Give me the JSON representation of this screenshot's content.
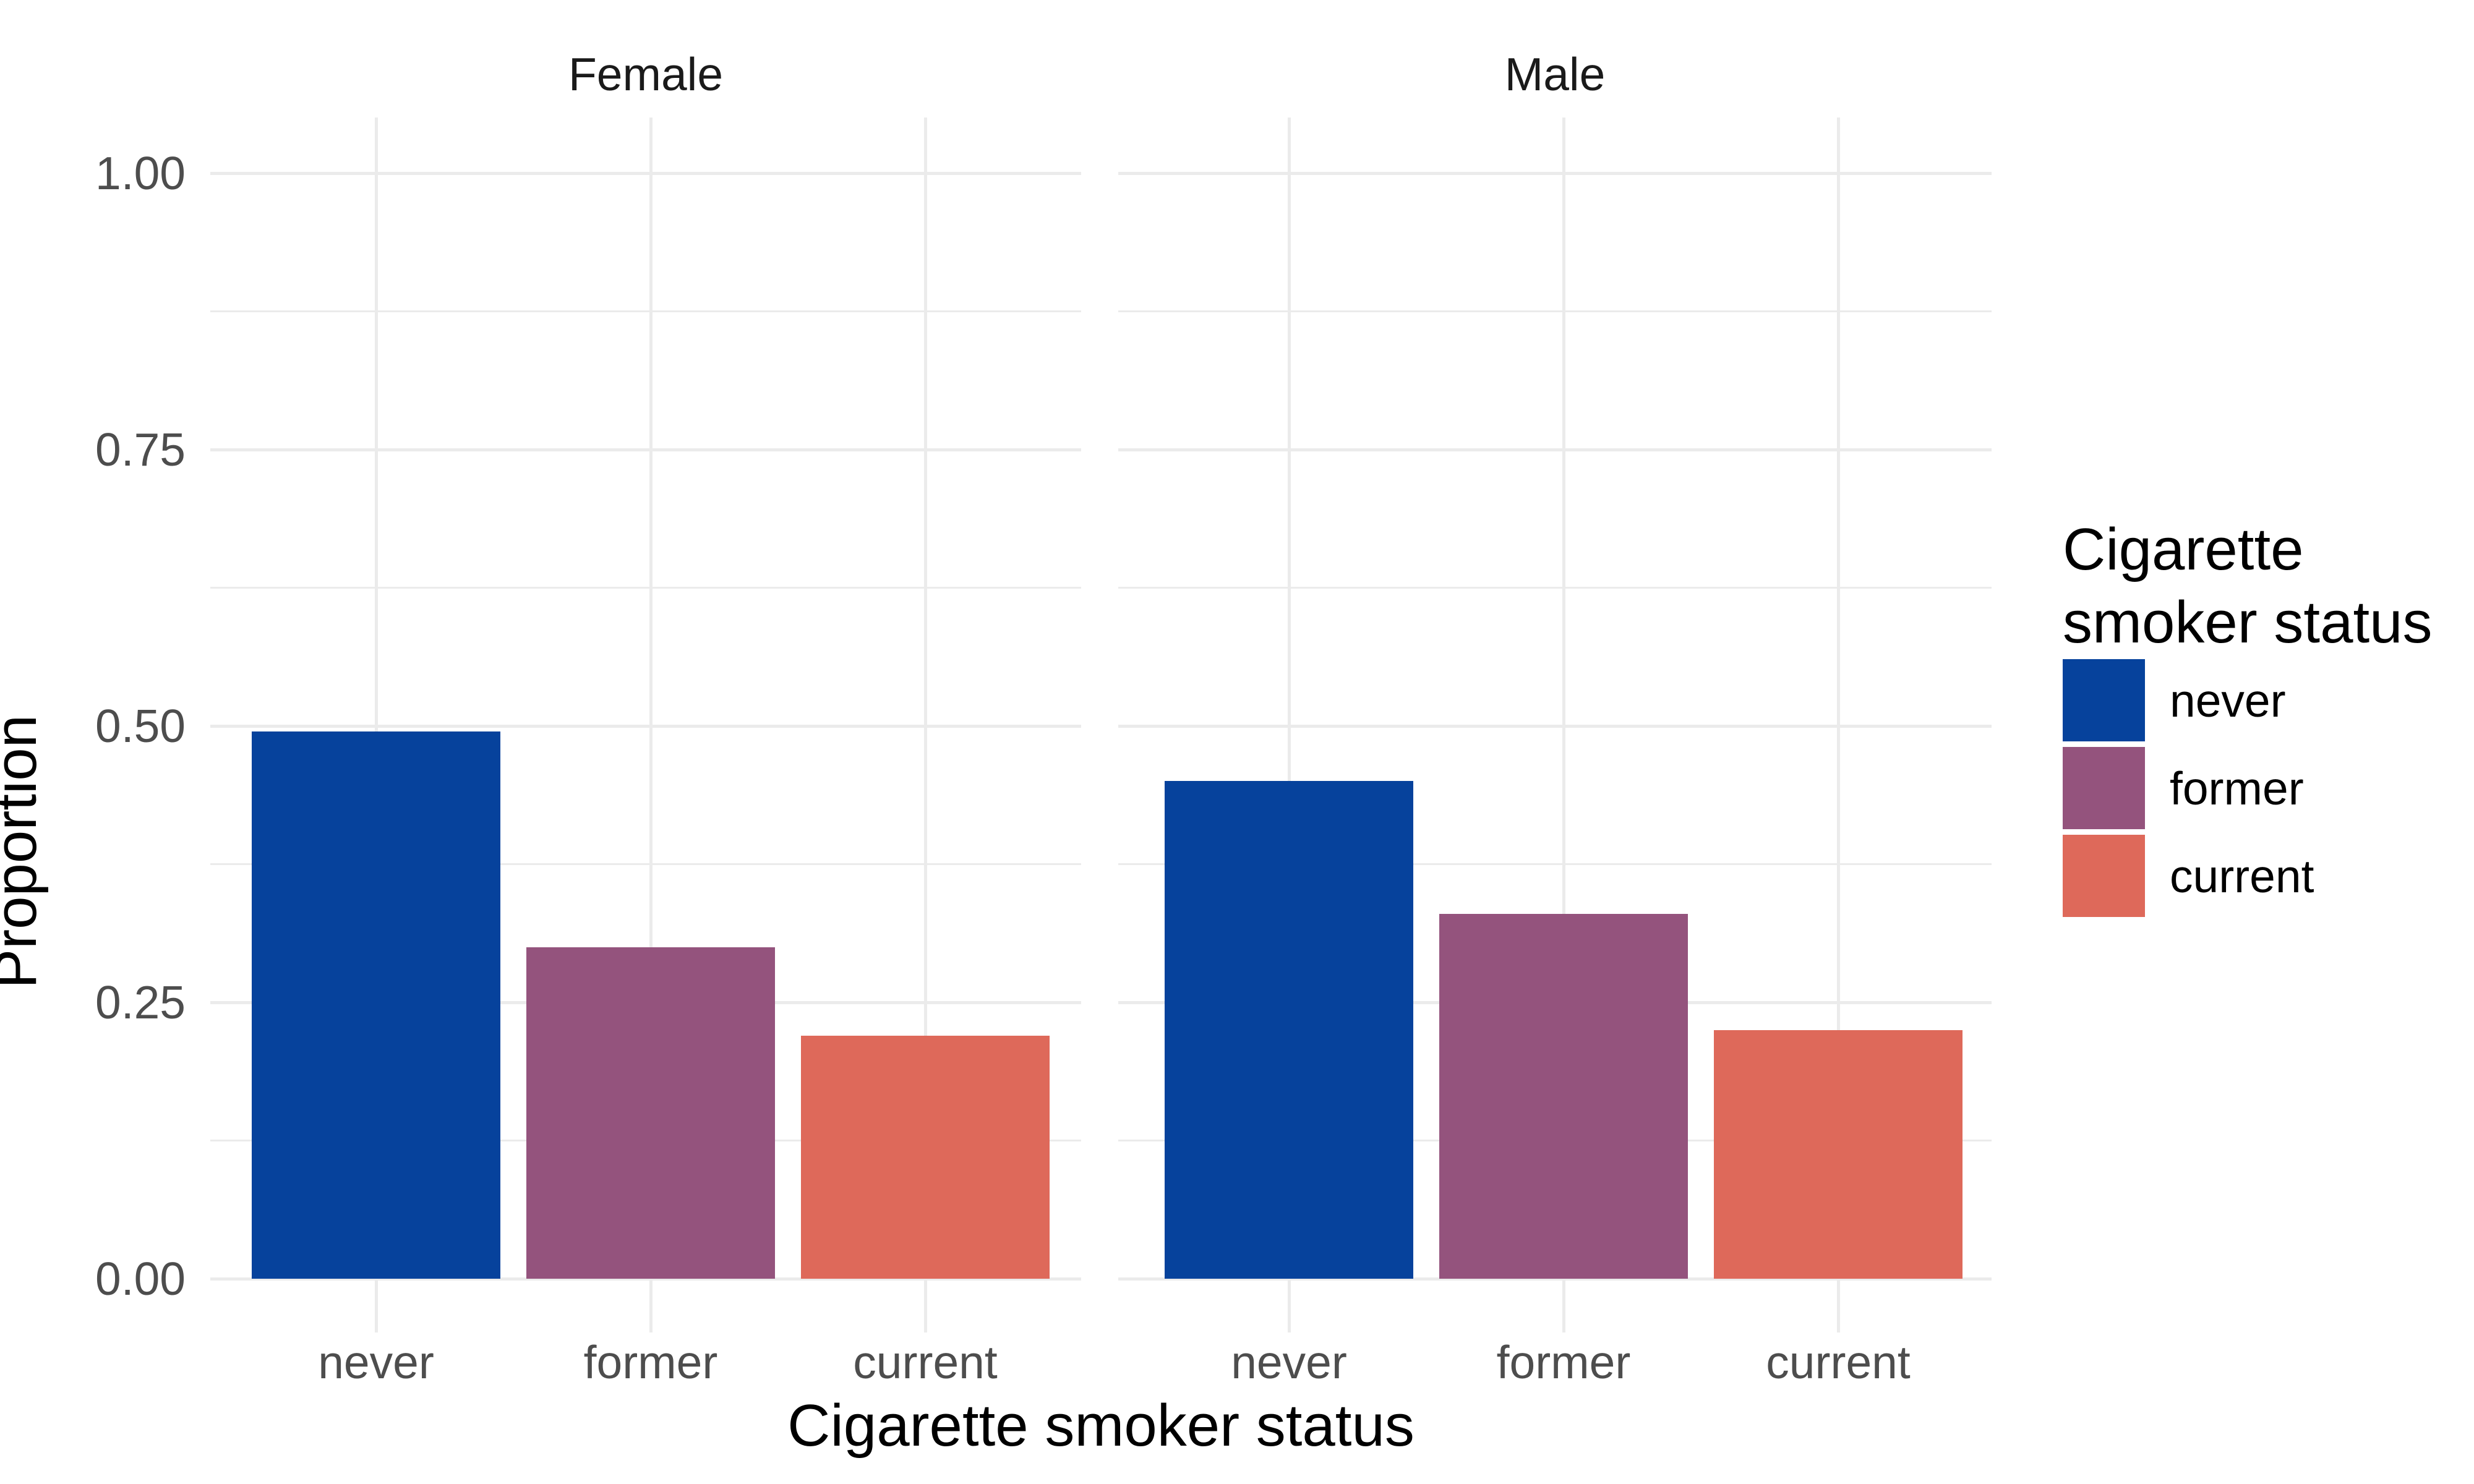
{
  "chart_data": {
    "type": "bar",
    "title": "",
    "xlabel": "Cigarette smoker status",
    "ylabel": "Proportion",
    "y_ticks": [
      "1.00",
      "0.75",
      "0.50",
      "0.25",
      "0.00"
    ],
    "y_tick_values": [
      1.0,
      0.75,
      0.5,
      0.25,
      0.0
    ],
    "ylim": [
      0,
      1
    ],
    "grid": {
      "major": true,
      "minor": true,
      "background": "#FFFFFF",
      "line_color": "#EBEBEB"
    },
    "facets": [
      {
        "label": "Female",
        "categories": [
          "never",
          "former",
          "current"
        ],
        "values": [
          0.495,
          0.3,
          0.22
        ]
      },
      {
        "label": "Male",
        "categories": [
          "never",
          "former",
          "current"
        ],
        "values": [
          0.45,
          0.33,
          0.225
        ]
      }
    ],
    "colors": {
      "never": "#06429C",
      "former": "#94537D",
      "current": "#DE695A"
    },
    "legend": {
      "title": "Cigarette smoker status",
      "title_lines": [
        "Cigarette",
        "smoker status"
      ],
      "position": "right",
      "entries": [
        {
          "label": "never",
          "color": "#06429C"
        },
        {
          "label": "former",
          "color": "#94537D"
        },
        {
          "label": "current",
          "color": "#DE695A"
        }
      ]
    }
  }
}
